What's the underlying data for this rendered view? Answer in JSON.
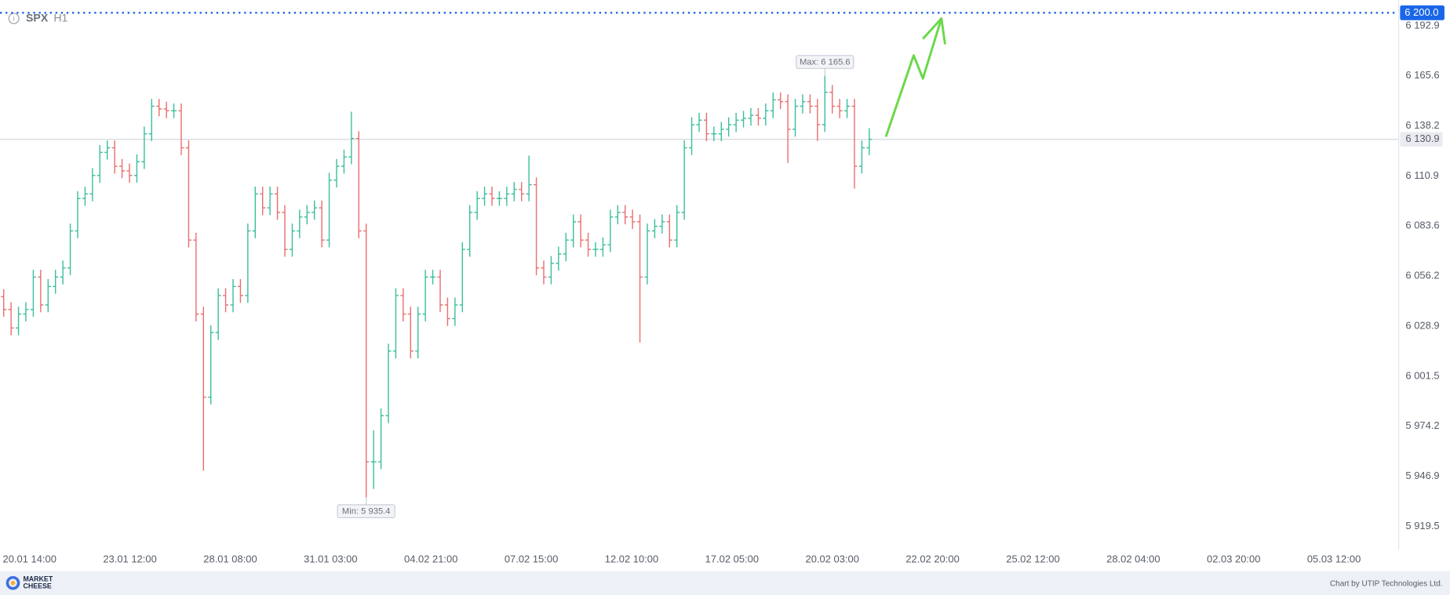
{
  "header": {
    "symbol": "SPX",
    "timeframe": "H1"
  },
  "chart_data": {
    "type": "ohlc",
    "up_color": "#3cbf9c",
    "down_color": "#e8706f",
    "bars": [
      [
        6045.0,
        6049.0,
        6034.0,
        6038.0
      ],
      [
        6038.0,
        6042.0,
        6023.9,
        6027.9
      ],
      [
        6027.9,
        6039.5,
        6023.9,
        6035.5
      ],
      [
        6035.5,
        6042.0,
        6031.5,
        6038.0
      ],
      [
        6038.0,
        6059.7,
        6034.0,
        6055.7
      ],
      [
        6055.7,
        6059.7,
        6036.5,
        6040.5
      ],
      [
        6040.5,
        6054.6,
        6036.5,
        6050.6
      ],
      [
        6050.6,
        6059.7,
        6046.6,
        6055.7
      ],
      [
        6055.7,
        6064.7,
        6051.7,
        6060.7
      ],
      [
        6060.7,
        6084.9,
        6056.7,
        6080.9
      ],
      [
        6080.9,
        6102.6,
        6076.9,
        6098.6
      ],
      [
        6098.6,
        6105.1,
        6094.6,
        6101.1
      ],
      [
        6101.1,
        6115.2,
        6097.1,
        6111.2
      ],
      [
        6111.2,
        6127.8,
        6107.2,
        6123.8
      ],
      [
        6123.8,
        6130.3,
        6119.8,
        6126.3
      ],
      [
        6126.3,
        6130.3,
        6112.2,
        6116.2
      ],
      [
        6116.2,
        6120.2,
        6109.7,
        6113.7
      ],
      [
        6113.7,
        6117.7,
        6107.2,
        6111.2
      ],
      [
        6111.2,
        6122.7,
        6107.2,
        6118.7
      ],
      [
        6118.7,
        6137.9,
        6114.7,
        6133.9
      ],
      [
        6133.9,
        6153.0,
        6129.9,
        6149.0
      ],
      [
        6149.0,
        6153.0,
        6143.5,
        6147.5
      ],
      [
        6147.5,
        6151.5,
        6142.5,
        6146.5
      ],
      [
        6146.5,
        6150.5,
        6142.5,
        6146.5
      ],
      [
        6146.5,
        6150.5,
        6122.3,
        6126.3
      ],
      [
        6126.3,
        6130.3,
        6071.9,
        6075.9
      ],
      [
        6075.9,
        6079.9,
        6031.5,
        6035.5
      ],
      [
        6035.5,
        6039.5,
        5950.0,
        5990.1
      ],
      [
        5990.1,
        6029.4,
        5986.1,
        6025.4
      ],
      [
        6025.4,
        6049.6,
        6021.4,
        6045.6
      ],
      [
        6045.6,
        6049.6,
        6036.5,
        6040.5
      ],
      [
        6040.5,
        6054.6,
        6036.5,
        6050.6
      ],
      [
        6050.6,
        6054.6,
        6041.6,
        6045.6
      ],
      [
        6045.6,
        6084.9,
        6041.6,
        6080.9
      ],
      [
        6080.9,
        6105.1,
        6076.9,
        6101.1
      ],
      [
        6101.1,
        6105.1,
        6089.5,
        6093.5
      ],
      [
        6093.5,
        6105.1,
        6089.5,
        6101.1
      ],
      [
        6101.1,
        6105.1,
        6087.0,
        6091.0
      ],
      [
        6091.0,
        6095.0,
        6066.8,
        6070.8
      ],
      [
        6070.8,
        6084.9,
        6066.8,
        6080.9
      ],
      [
        6080.9,
        6092.5,
        6076.9,
        6088.5
      ],
      [
        6088.5,
        6095.0,
        6084.5,
        6091.0
      ],
      [
        6091.0,
        6097.5,
        6087.0,
        6093.5
      ],
      [
        6093.5,
        6097.5,
        6071.9,
        6075.9
      ],
      [
        6075.9,
        6112.6,
        6071.9,
        6108.6
      ],
      [
        6108.6,
        6120.2,
        6104.6,
        6116.2
      ],
      [
        6116.2,
        6125.3,
        6112.2,
        6121.3
      ],
      [
        6121.3,
        6146.0,
        6117.3,
        6131.4
      ],
      [
        6131.4,
        6135.4,
        6076.9,
        6080.9
      ],
      [
        6080.9,
        6084.9,
        5935.4,
        5954.8
      ],
      [
        5954.8,
        5972.0,
        5940.0,
        5954.8
      ],
      [
        5954.8,
        5984.0,
        5950.8,
        5980.0
      ],
      [
        5980.0,
        6019.3,
        5976.0,
        6015.3
      ],
      [
        6015.3,
        6049.6,
        6011.3,
        6045.6
      ],
      [
        6045.6,
        6049.6,
        6031.5,
        6035.5
      ],
      [
        6035.5,
        6039.5,
        6011.3,
        6015.3
      ],
      [
        6015.3,
        6039.5,
        6011.3,
        6035.5
      ],
      [
        6035.5,
        6059.7,
        6031.5,
        6055.7
      ],
      [
        6055.7,
        6059.7,
        6051.7,
        6055.7
      ],
      [
        6055.7,
        6059.7,
        6036.5,
        6040.5
      ],
      [
        6040.5,
        6044.5,
        6029.0,
        6033.0
      ],
      [
        6033.0,
        6044.5,
        6029.0,
        6040.5
      ],
      [
        6040.5,
        6074.8,
        6036.5,
        6070.8
      ],
      [
        6070.8,
        6095.0,
        6066.8,
        6091.0
      ],
      [
        6091.0,
        6102.6,
        6087.0,
        6098.6
      ],
      [
        6098.6,
        6105.1,
        6094.6,
        6101.1
      ],
      [
        6101.1,
        6105.1,
        6094.6,
        6098.6
      ],
      [
        6098.6,
        6102.6,
        6094.6,
        6098.6
      ],
      [
        6098.6,
        6105.1,
        6094.6,
        6101.1
      ],
      [
        6101.1,
        6107.6,
        6097.1,
        6103.6
      ],
      [
        6103.6,
        6107.6,
        6097.1,
        6101.1
      ],
      [
        6101.1,
        6122.0,
        6097.1,
        6106.1
      ],
      [
        6106.1,
        6110.1,
        6056.7,
        6060.7
      ],
      [
        6060.7,
        6064.7,
        6051.7,
        6055.7
      ],
      [
        6055.7,
        6067.2,
        6051.7,
        6063.2
      ],
      [
        6063.2,
        6072.3,
        6059.2,
        6068.3
      ],
      [
        6068.3,
        6079.9,
        6064.3,
        6075.9
      ],
      [
        6075.9,
        6089.9,
        6071.9,
        6085.9
      ],
      [
        6085.9,
        6089.9,
        6071.9,
        6075.9
      ],
      [
        6075.9,
        6079.9,
        6066.8,
        6070.8
      ],
      [
        6070.8,
        6074.8,
        6066.8,
        6070.8
      ],
      [
        6070.8,
        6077.3,
        6066.8,
        6073.3
      ],
      [
        6073.3,
        6092.5,
        6069.3,
        6088.5
      ],
      [
        6088.5,
        6095.0,
        6084.5,
        6091.0
      ],
      [
        6091.0,
        6095.0,
        6084.5,
        6088.5
      ],
      [
        6088.5,
        6092.5,
        6081.9,
        6085.9
      ],
      [
        6085.9,
        6089.9,
        6020.0,
        6055.7
      ],
      [
        6055.7,
        6084.9,
        6051.7,
        6080.9
      ],
      [
        6080.9,
        6087.4,
        6076.9,
        6083.4
      ],
      [
        6083.4,
        6089.9,
        6079.4,
        6085.9
      ],
      [
        6085.9,
        6089.9,
        6071.9,
        6075.9
      ],
      [
        6075.9,
        6095.0,
        6071.9,
        6091.0
      ],
      [
        6091.0,
        6130.3,
        6087.0,
        6126.3
      ],
      [
        6126.3,
        6142.9,
        6122.3,
        6138.9
      ],
      [
        6138.9,
        6145.4,
        6134.9,
        6141.4
      ],
      [
        6141.4,
        6145.4,
        6129.9,
        6133.9
      ],
      [
        6133.9,
        6137.9,
        6129.9,
        6133.9
      ],
      [
        6133.9,
        6140.4,
        6129.9,
        6136.4
      ],
      [
        6136.4,
        6142.9,
        6132.4,
        6138.9
      ],
      [
        6138.9,
        6145.4,
        6134.9,
        6141.4
      ],
      [
        6141.4,
        6146.4,
        6137.4,
        6142.4
      ],
      [
        6142.4,
        6148.0,
        6138.4,
        6144.0
      ],
      [
        6144.0,
        6148.0,
        6138.4,
        6142.4
      ],
      [
        6142.4,
        6150.5,
        6138.4,
        6146.5
      ],
      [
        6146.5,
        6156.5,
        6142.5,
        6152.5
      ],
      [
        6152.5,
        6156.5,
        6147.5,
        6151.5
      ],
      [
        6151.5,
        6155.5,
        6118.0,
        6136.4
      ],
      [
        6136.4,
        6153.0,
        6132.4,
        6149.0
      ],
      [
        6149.0,
        6155.5,
        6145.0,
        6151.5
      ],
      [
        6151.5,
        6155.5,
        6145.0,
        6149.0
      ],
      [
        6149.0,
        6153.0,
        6130.0,
        6138.9
      ],
      [
        6138.9,
        6165.6,
        6134.9,
        6156.6
      ],
      [
        6156.6,
        6160.6,
        6145.0,
        6149.0
      ],
      [
        6149.0,
        6153.0,
        6142.5,
        6146.5
      ],
      [
        6146.5,
        6153.0,
        6142.5,
        6149.0
      ],
      [
        6149.0,
        6153.0,
        6104.0,
        6116.2
      ],
      [
        6116.2,
        6130.3,
        6112.2,
        6126.3
      ],
      [
        6126.3,
        6137.0,
        6122.3,
        6130.9
      ]
    ],
    "xlim": [
      -0.5,
      188.5
    ],
    "xticks": [
      {
        "value": 3.5,
        "label": "20.01 14:00"
      },
      {
        "value": 17.06,
        "label": "23.01 12:00"
      },
      {
        "value": 30.63,
        "label": "28.01 08:00"
      },
      {
        "value": 44.19,
        "label": "31.01 03:00"
      },
      {
        "value": 57.75,
        "label": "04.02 21:00"
      },
      {
        "value": 71.31,
        "label": "07.02 15:00"
      },
      {
        "value": 84.88,
        "label": "12.02 10:00"
      },
      {
        "value": 98.44,
        "label": "17.02 05:00"
      },
      {
        "value": 112.0,
        "label": "20.02 03:00"
      },
      {
        "value": 125.56,
        "label": "22.02 20:00"
      },
      {
        "value": 139.13,
        "label": "25.02 12:00"
      },
      {
        "value": 152.69,
        "label": "28.02 04:00"
      },
      {
        "value": 166.25,
        "label": "02.03 20:00"
      },
      {
        "value": 179.81,
        "label": "05.03 12:00"
      }
    ],
    "ylim": [
      5906.8,
      6207.0
    ],
    "yticks": [
      {
        "value": 6192.9,
        "label": "6 192.9"
      },
      {
        "value": 6165.6,
        "label": "6 165.6"
      },
      {
        "value": 6138.2,
        "label": "6 138.2"
      },
      {
        "value": 6110.9,
        "label": "6 110.9"
      },
      {
        "value": 6083.6,
        "label": "6 083.6"
      },
      {
        "value": 6056.2,
        "label": "6 056.2"
      },
      {
        "value": 6028.9,
        "label": "6 028.9"
      },
      {
        "value": 6001.5,
        "label": "6 001.5"
      },
      {
        "value": 5974.2,
        "label": "5 974.2"
      },
      {
        "value": 5946.9,
        "label": "5 946.9"
      },
      {
        "value": 5919.5,
        "label": "5 919.5"
      }
    ],
    "annotations": [
      {
        "text": "Max: 6 165.6",
        "value": 6165.6,
        "anchor": "high"
      },
      {
        "text": "Min: 5 935.4",
        "value": 5935.4,
        "anchor": "low"
      }
    ],
    "current_price": {
      "value": 6130.9,
      "label": "6 130.9"
    },
    "target_level": {
      "value": 6200.0,
      "label": "6 200.0",
      "color": "#1a66e8"
    }
  },
  "footer": {
    "logo": [
      "MARKET",
      "CHEESE"
    ],
    "credit": "Chart by UTIP Technologies Ltd."
  }
}
